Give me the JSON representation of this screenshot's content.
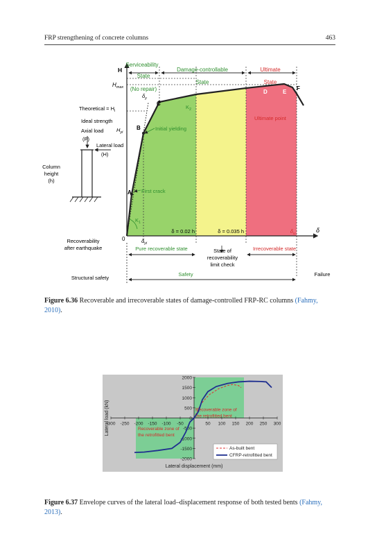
{
  "header": {
    "title": "FRP strengthening of concrete columns",
    "page_number": "463"
  },
  "figure_636": {
    "states": {
      "serviceability": "Serviceability",
      "serviceability_state": "State",
      "no_repair": "(No repair)",
      "damage_controllable": "Damage-controllable",
      "damage_state": "State",
      "ultimate": "Ultimate",
      "ultimate_state": "State"
    },
    "axis": {
      "h": "H",
      "hmax": "H",
      "hmax_sub": "max",
      "delta": "δ",
      "origin": "0"
    },
    "left_labels": {
      "theoretical": "Theoretical = H",
      "theoretical_sub": "i",
      "ideal": "Ideal strength",
      "axial": "Axial load",
      "axial_p": "(P)",
      "lateral": "Lateral load",
      "lateral_h": "(H)",
      "hyi": "H",
      "hyi_sub": "yi",
      "column1": "Column",
      "column2": "height",
      "column3": "(h)",
      "recov1": "Recoverability",
      "recov2": "after earthquake",
      "safety": "Structural safety"
    },
    "points": {
      "a": "A",
      "b": "B",
      "c": "C",
      "d": "D",
      "e": "E",
      "f": "F"
    },
    "curve_labels": {
      "k2": "K",
      "k2_sub": "2",
      "k1": "K",
      "k1_sub": "1",
      "initial_yielding": "Initial yielding",
      "first_crack": "First crack",
      "ultimate_point": "Ultimate point",
      "dy_top": "δ",
      "dy_top_sub": "y",
      "dyi": "δ",
      "dyi_sub": "yi",
      "delta_002": "δ = 0.02 h",
      "delta_0035": "δ = 0.035 h",
      "delta_u": "δ",
      "delta_u_sub": "u"
    },
    "bottom": {
      "pure_recoverable": "Pure recoverable state",
      "recov_check1": "State of",
      "recov_check2": "recoverability",
      "recov_check3": "limit check",
      "irrecoverable": "Irrecoverable state",
      "safety": "Safety",
      "failure": "Failure"
    },
    "colors": {
      "green": "#98d36a",
      "yellow": "#f4f38c",
      "red": "#ef6f7f"
    },
    "caption_label": "Figure 6.36",
    "caption_text": "Recoverable and irrecoverable states of damage-controlled FRP-RC columns",
    "caption_cite": "(Fahmy, 2010)",
    "caption_end": "."
  },
  "figure_637": {
    "chart_data": {
      "type": "line",
      "xlabel": "Lateral displacement (mm)",
      "ylabel": "Lateral load (kN)",
      "xlim": [
        -300,
        300
      ],
      "ylim": [
        -2000,
        2000
      ],
      "xticks": [
        -300,
        -250,
        -200,
        -150,
        -100,
        -50,
        0,
        50,
        100,
        150,
        200,
        250,
        300
      ],
      "yticks": [
        -2000,
        -1500,
        -1000,
        -500,
        0,
        500,
        1000,
        1500,
        2000
      ],
      "shaded_regions": [
        {
          "x": [
            0,
            180
          ],
          "y": [
            0,
            2000
          ],
          "label": "Recoverable zone of the retrofitted bent"
        },
        {
          "x": [
            -210,
            0
          ],
          "y": [
            -2000,
            0
          ],
          "label": "Recoverable zone of the retrofitted bent"
        }
      ],
      "series": [
        {
          "name": "As-built bent",
          "style": "dashed",
          "color": "#e03030",
          "x": [
            0,
            25,
            55,
            90,
            120,
            140,
            160,
            170
          ],
          "y": [
            0,
            700,
            1150,
            1450,
            1600,
            1650,
            1600,
            1500
          ]
        },
        {
          "name": "CFRP-retrofitted bent",
          "style": "solid",
          "color": "#1f2f8f",
          "x": [
            -215,
            -180,
            -130,
            -80,
            -50,
            -30,
            -15,
            0,
            15,
            30,
            50,
            80,
            120,
            160,
            200,
            240,
            260,
            280
          ],
          "y": [
            -1700,
            -1680,
            -1600,
            -1500,
            -1200,
            -700,
            -200,
            0,
            300,
            900,
            1300,
            1550,
            1700,
            1780,
            1810,
            1800,
            1780,
            1500
          ]
        }
      ]
    },
    "caption_label": "Figure 6.37",
    "caption_text": "Envelope curves of the lateral load–displacement response of both tested bents",
    "caption_cite": "(Fahmy, 2013)",
    "caption_end": "."
  }
}
